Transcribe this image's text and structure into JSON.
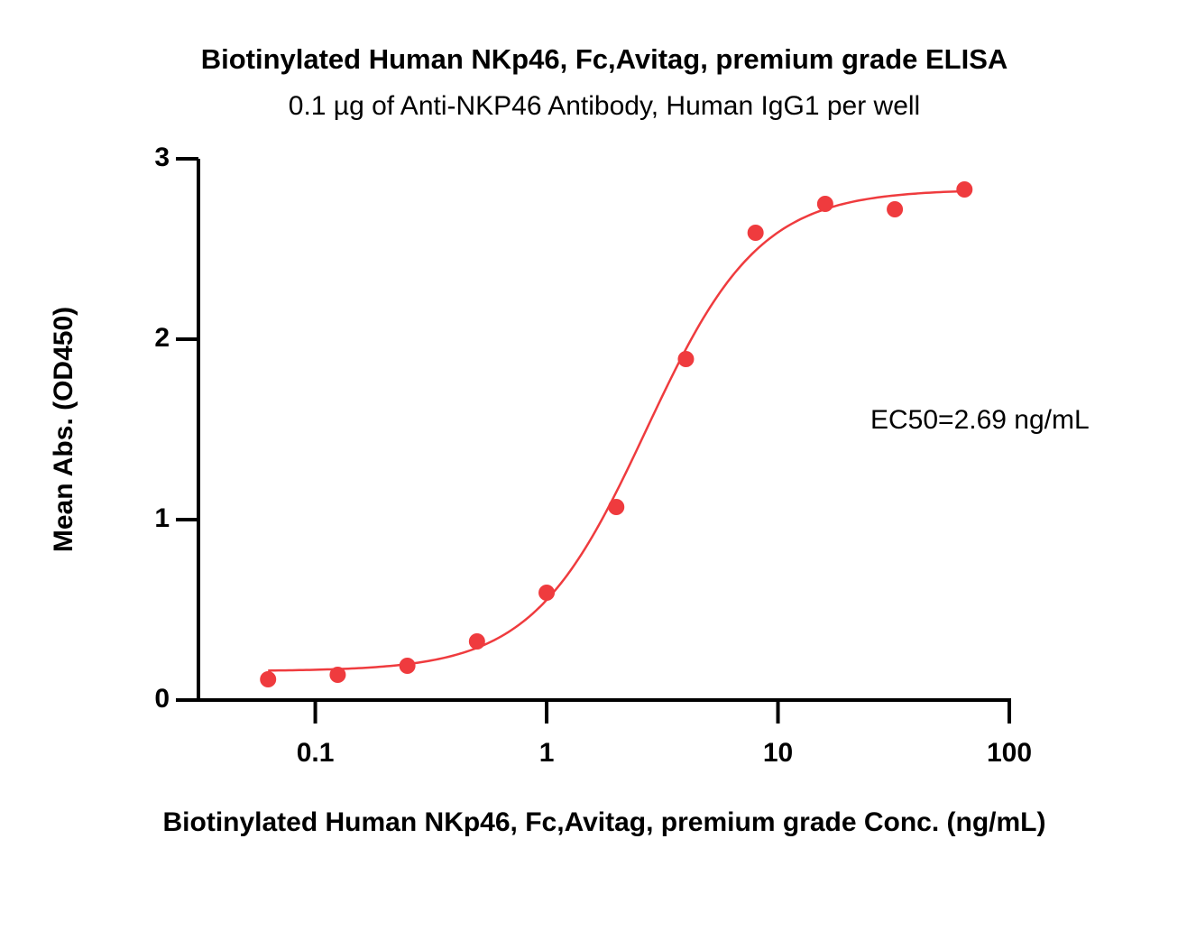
{
  "chart_data": {
    "type": "scatter",
    "title": "Biotinylated Human NKp46, Fc,Avitag, premium grade ELISA",
    "subtitle": "0.1 µg of Anti-NKP46 Antibody, Human IgG1 per well",
    "x_label": "Biotinylated Human NKp46, Fc,Avitag, premium grade Conc. (ng/mL)",
    "y_label": "Mean Abs. (OD450)",
    "annotation": "EC50=2.69 ng/mL",
    "x": [
      0.0625,
      0.125,
      0.25,
      0.5,
      1,
      2,
      4,
      8,
      16,
      32,
      64
    ],
    "values": [
      0.115,
      0.14,
      0.19,
      0.325,
      0.595,
      1.07,
      1.89,
      2.59,
      2.75,
      2.72,
      2.83
    ],
    "color": "#ef3b3e",
    "fit": {
      "bottom": 0.16,
      "top": 2.83,
      "ec50": 2.69,
      "hill": 1.77
    },
    "x_log": true,
    "xlim": [
      0.03125,
      100
    ],
    "xticks": [
      0.1,
      1,
      10,
      100
    ],
    "ylim": [
      0,
      3
    ],
    "yticks": [
      0,
      1,
      2,
      3
    ]
  }
}
